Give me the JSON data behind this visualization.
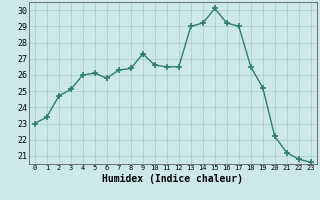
{
  "x": [
    0,
    1,
    2,
    3,
    4,
    5,
    6,
    7,
    8,
    9,
    10,
    11,
    12,
    13,
    14,
    15,
    16,
    17,
    18,
    19,
    20,
    21,
    22,
    23
  ],
  "y": [
    23.0,
    23.4,
    24.7,
    25.1,
    26.0,
    26.1,
    25.8,
    26.3,
    26.4,
    27.3,
    26.6,
    26.5,
    26.5,
    29.0,
    29.2,
    30.1,
    29.2,
    29.0,
    26.5,
    25.2,
    22.2,
    21.2,
    20.8,
    20.6
  ],
  "line_color": "#2e7d6e",
  "marker": "+",
  "marker_size": 4,
  "bg_color": "#cce8e8",
  "grid_color": "#aacccc",
  "xlabel": "Humidex (Indice chaleur)",
  "ylim": [
    20.5,
    30.5
  ],
  "xlim": [
    -0.5,
    23.5
  ],
  "yticks": [
    21,
    22,
    23,
    24,
    25,
    26,
    27,
    28,
    29,
    30
  ],
  "xticks": [
    0,
    1,
    2,
    3,
    4,
    5,
    6,
    7,
    8,
    9,
    10,
    11,
    12,
    13,
    14,
    15,
    16,
    17,
    18,
    19,
    20,
    21,
    22,
    23
  ]
}
